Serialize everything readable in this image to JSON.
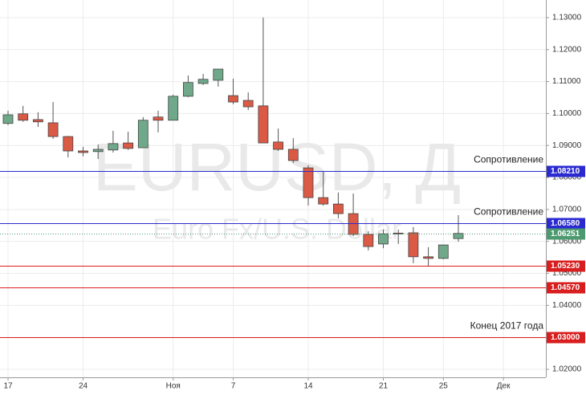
{
  "chart_data": {
    "type": "candlestick",
    "watermark": {
      "symbol": "EURUSD, Д",
      "description": "Euro Fx/U.S. Dollar"
    },
    "categories": [
      "17",
      null,
      null,
      null,
      null,
      "24",
      null,
      null,
      null,
      null,
      null,
      "Ноя",
      null,
      null,
      null,
      "7",
      null,
      null,
      null,
      null,
      "14",
      null,
      null,
      null,
      null,
      "21",
      null,
      null,
      null,
      "25",
      null,
      null,
      null,
      "Дек"
    ],
    "open": [
      1.0969,
      1.0999,
      1.0981,
      1.0971,
      1.0928,
      1.0883,
      1.0881,
      1.0886,
      1.0908,
      1.0893,
      1.0989,
      1.0979,
      1.1054,
      1.1094,
      1.1104,
      1.1056,
      1.1041,
      1.1024,
      1.0911,
      1.0888,
      1.083,
      1.0737,
      1.0717,
      1.0687,
      1.0622,
      1.0592,
      1.0626,
      1.0627,
      1.0552,
      1.0547,
      1.0609,
      null,
      null,
      null
    ],
    "high": [
      1.1009,
      1.1024,
      1.1004,
      1.1036,
      1.093,
      1.0896,
      1.0903,
      1.0946,
      1.0943,
      1.0989,
      1.1009,
      1.1059,
      1.1119,
      1.1124,
      1.1139,
      1.1109,
      1.1066,
      1.13,
      1.0953,
      1.0923,
      1.0838,
      1.0818,
      1.0753,
      1.075,
      1.0632,
      1.0637,
      1.0637,
      1.0645,
      1.0582,
      1.0589,
      1.0682,
      null,
      null,
      null
    ],
    "low": [
      1.0964,
      1.0974,
      1.0958,
      1.0921,
      1.0863,
      1.0866,
      1.0858,
      1.0878,
      1.0886,
      1.0893,
      1.0941,
      1.0979,
      1.1051,
      1.1089,
      1.1084,
      1.1029,
      1.1011,
      1.0908,
      1.0883,
      1.0845,
      1.0712,
      1.0712,
      1.0672,
      1.0617,
      1.0572,
      1.0579,
      1.0592,
      1.0532,
      1.0524,
      1.0544,
      1.0599,
      null,
      null,
      null
    ],
    "close": [
      1.0996,
      1.0979,
      1.0974,
      1.0928,
      1.0883,
      1.0878,
      1.0888,
      1.0906,
      1.0891,
      1.0979,
      1.0979,
      1.1054,
      1.1097,
      1.1107,
      1.1139,
      1.1036,
      1.1021,
      1.0908,
      1.0888,
      1.0853,
      1.0737,
      1.0717,
      1.0687,
      1.0622,
      1.0584,
      1.0624,
      1.0624,
      1.0552,
      1.0547,
      1.0589,
      1.0625,
      null,
      null,
      null
    ],
    "up_color": "#6fa98a",
    "down_color": "#db5a45",
    "ylim": [
      1.0175,
      1.1355
    ],
    "yticks": [
      {
        "value": 1.02,
        "label": "1.02000"
      },
      {
        "value": 1.03,
        "label": "1.03000"
      },
      {
        "value": 1.04,
        "label": "1.04000"
      },
      {
        "value": 1.05,
        "label": "1.05000"
      },
      {
        "value": 1.06,
        "label": "1.06000"
      },
      {
        "value": 1.07,
        "label": "1.07000"
      },
      {
        "value": 1.08,
        "label": "1.08000"
      },
      {
        "value": 1.09,
        "label": "1.09000"
      },
      {
        "value": 1.1,
        "label": "1.10000"
      },
      {
        "value": 1.11,
        "label": "1.11000"
      },
      {
        "value": 1.12,
        "label": "1.12000"
      },
      {
        "value": 1.13,
        "label": "1.13000"
      }
    ],
    "grid": true,
    "levels": [
      {
        "value": 1.0821,
        "label": "1.08210",
        "color": "#2a2ad0",
        "note": "Сопротивление"
      },
      {
        "value": 1.0658,
        "label": "1.06580",
        "color": "#2a2ad0",
        "note": "Сопротивление"
      },
      {
        "value": 1.06251,
        "label": "1.06251",
        "color": "#4e9a70",
        "dotted": true
      },
      {
        "value": 1.0523,
        "label": "1.05230",
        "color": "#d81e1e"
      },
      {
        "value": 1.0457,
        "label": "1.04570",
        "color": "#d81e1e"
      },
      {
        "value": 1.03,
        "label": "1.03000",
        "color": "#d81e1e",
        "note": "Конец 2017 года"
      }
    ]
  }
}
